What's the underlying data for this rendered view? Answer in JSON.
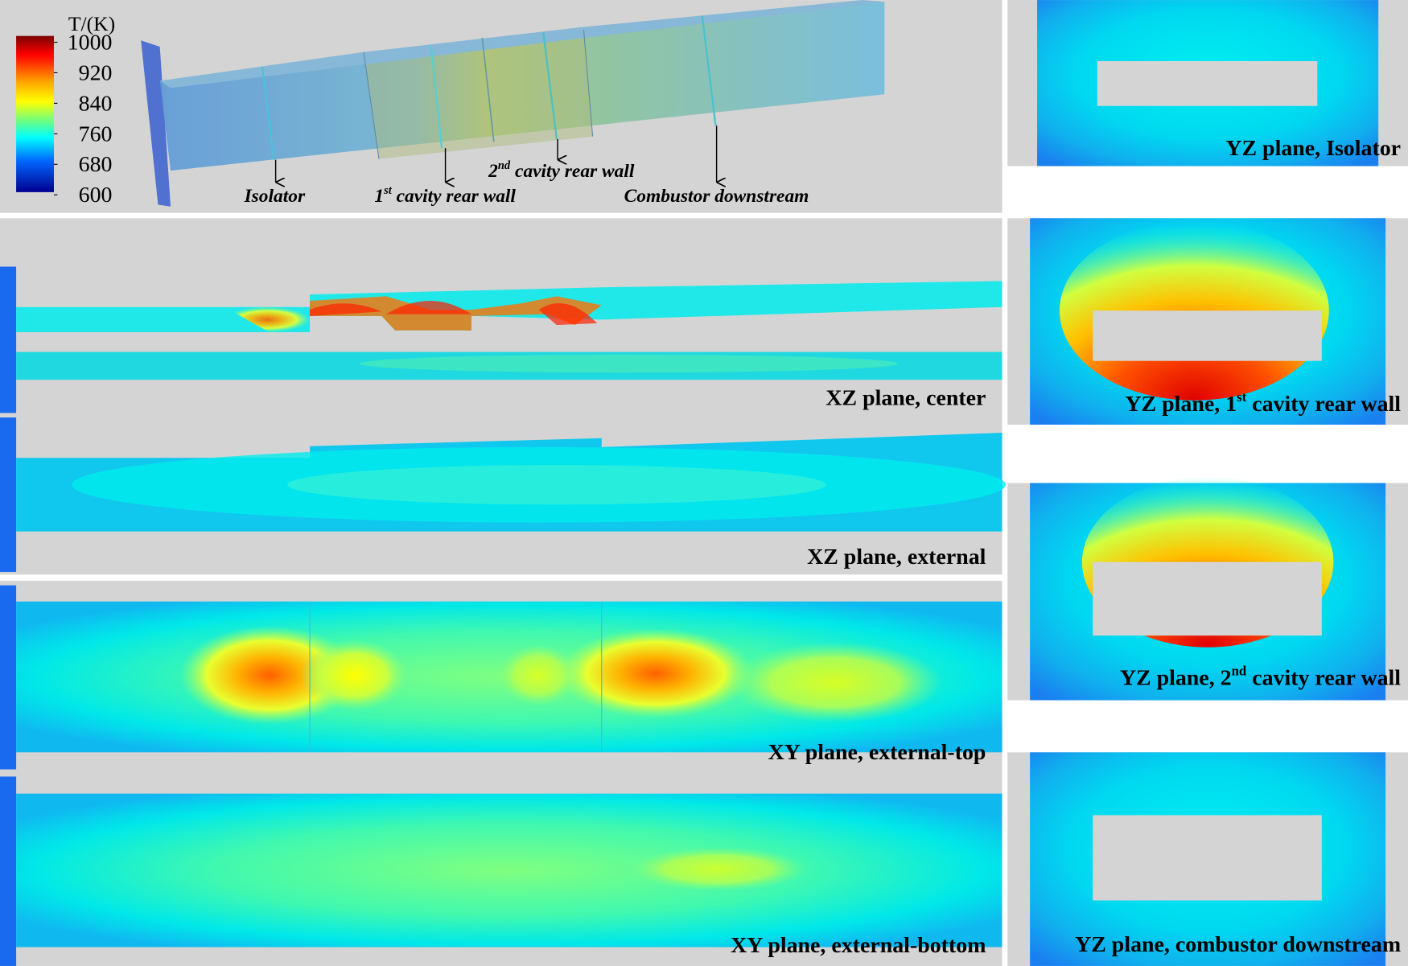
{
  "colorbar": {
    "title": "T/(K)",
    "ticks": [
      1000,
      920,
      840,
      760,
      680,
      600
    ]
  },
  "duct_labels": [
    {
      "text": "Isolator"
    },
    {
      "prefix": "1",
      "sup": "st",
      "text": " cavity rear wall"
    },
    {
      "prefix": "2",
      "sup": "nd",
      "text": " cavity rear wall"
    },
    {
      "text": "Combustor downstream"
    }
  ],
  "planes": [
    "XZ plane, center",
    "XZ plane, external",
    "XY plane, external-top",
    "XY plane, external-bottom"
  ],
  "cross_sections": [
    {
      "text": "YZ plane, Isolator"
    },
    {
      "prefix": "YZ plane, 1",
      "sup": "st",
      "text": " cavity rear wall"
    },
    {
      "prefix": "YZ plane, 2",
      "sup": "nd",
      "text": " cavity rear wall"
    },
    {
      "text": "YZ plane, combustor downstream"
    }
  ]
}
